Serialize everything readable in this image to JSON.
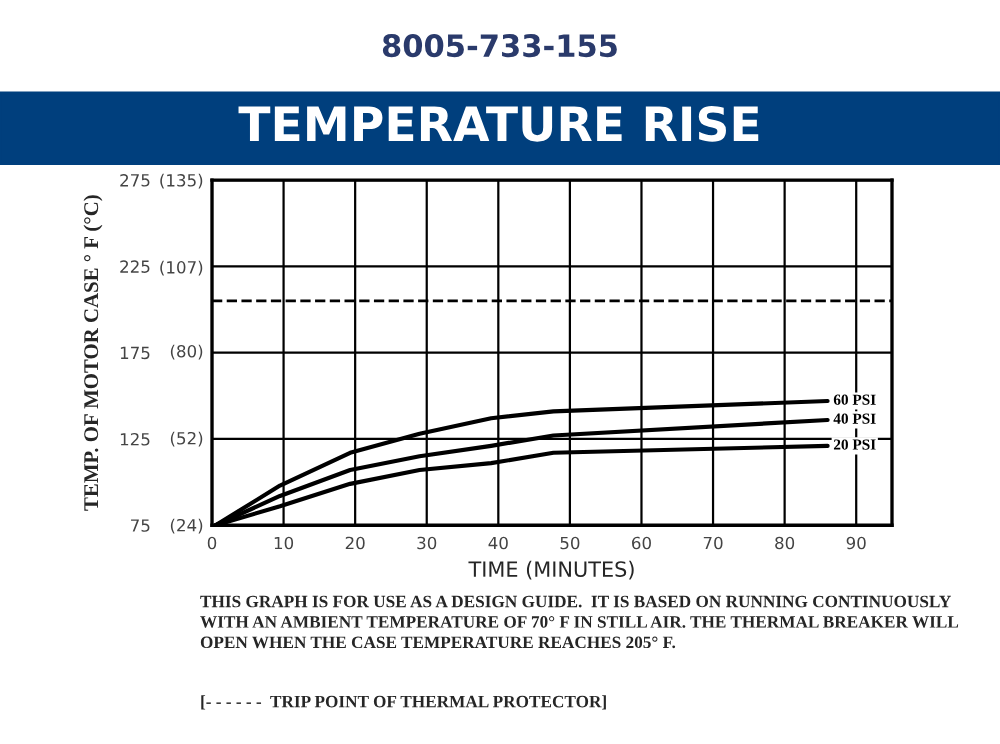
{
  "chart_data": {
    "type": "line",
    "subtitle": "8005-733-155",
    "title": "TEMPERATURE RISE",
    "xlabel": "TIME (MINUTES)",
    "ylabel": "TEMP. OF MOTOR CASE ° F (°C)",
    "xlim": [
      0,
      95
    ],
    "xticks": [
      0,
      10,
      20,
      30,
      40,
      50,
      60,
      70,
      80,
      90
    ],
    "ylim": [
      75,
      275
    ],
    "yticks": [
      75,
      125,
      175,
      225,
      275
    ],
    "y2lim": [
      23.9,
      135
    ],
    "y2ticks": [
      {
        "value": 24,
        "label": "(24)"
      },
      {
        "value": 52,
        "label": "(52)"
      },
      {
        "value": 80,
        "label": "(80)"
      },
      {
        "value": 107,
        "label": "(107)"
      },
      {
        "value": 135,
        "label": "(135)"
      }
    ],
    "grid": true,
    "legend": false,
    "marker": "none",
    "line_style": "solid",
    "series": [
      {
        "name": "60 PSI",
        "color": "#000000",
        "x": [
          0.5,
          9.5,
          19.3,
          29,
          39,
          47.7,
          86
        ],
        "values": [
          75,
          98,
          117,
          128,
          137,
          141,
          147
        ]
      },
      {
        "name": "40 PSI",
        "color": "#000000",
        "x": [
          0.5,
          9.5,
          19.3,
          29,
          39,
          47.7,
          86
        ],
        "values": [
          75,
          92,
          107,
          115,
          121,
          127,
          136
        ]
      },
      {
        "name": "20 PSI",
        "color": "#000000",
        "x": [
          0.5,
          9.5,
          19.3,
          29,
          39,
          47.7,
          86
        ],
        "values": [
          75,
          86,
          99,
          107,
          111,
          117,
          121
        ]
      }
    ],
    "ref_lines": [
      {
        "axis": "y",
        "value": 205,
        "color": "#000000",
        "line_style": "dashed"
      }
    ],
    "annotations": [
      "THIS GRAPH IS FOR USE AS A DESIGN GUIDE.  IT IS BASED ON RUNNING CONTINUOUSLY WITH AN AMBIENT TEMPERATURE OF 70° F IN STILL AIR. THE THERMAL BREAKER WILL OPEN WHEN THE CASE TEMPERATURE REACHES 205° F.",
      "[- - - - - -  TRIP POINT OF THERMAL PROTECTOR]"
    ]
  }
}
